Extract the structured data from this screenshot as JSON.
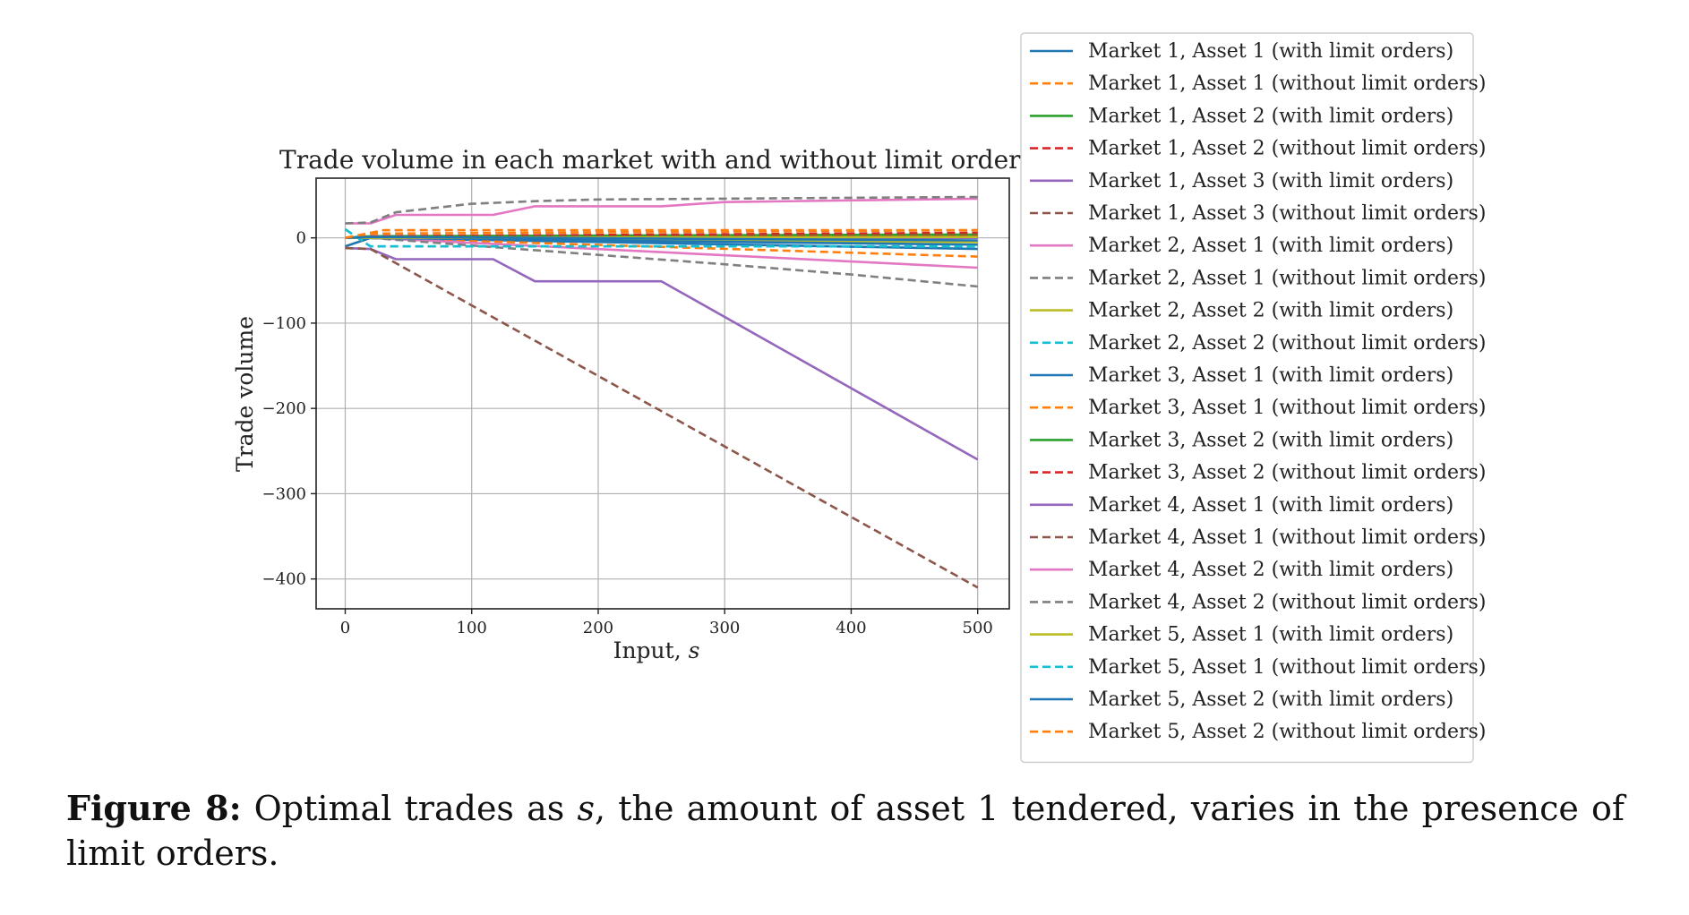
{
  "chart_data": {
    "type": "line",
    "title": "Trade volume in each market with and without limit orders",
    "xlabel_text": "Input, ",
    "xlabel_var": "s",
    "ylabel": "Trade volume",
    "xlim": [
      -23,
      525
    ],
    "ylim": [
      -435,
      70
    ],
    "xticks": [
      0,
      100,
      200,
      300,
      400,
      500
    ],
    "yticks": [
      0,
      -100,
      -200,
      -300,
      -400
    ],
    "xtick_labels": [
      "0",
      "100",
      "200",
      "300",
      "400",
      "500"
    ],
    "ytick_labels": [
      "0",
      "−100",
      "−200",
      "−300",
      "−400"
    ],
    "grid": true,
    "legend_position": "outside-right",
    "series": [
      {
        "name": "Market 1, Asset 1 (with limit orders)",
        "color": "#1f77b4",
        "dashed": false,
        "x": [
          0,
          20,
          500
        ],
        "y": [
          -10,
          0,
          -13
        ]
      },
      {
        "name": "Market 1, Asset 1 (without limit orders)",
        "color": "#ff7f0e",
        "dashed": true,
        "x": [
          0,
          20,
          500
        ],
        "y": [
          -10,
          0,
          -22
        ]
      },
      {
        "name": "Market 1, Asset 2 (with limit orders)",
        "color": "#2ca02c",
        "dashed": false,
        "x": [
          0,
          20,
          500
        ],
        "y": [
          0,
          2,
          4
        ]
      },
      {
        "name": "Market 1, Asset 2 (without limit orders)",
        "color": "#d62728",
        "dashed": true,
        "x": [
          0,
          20,
          500
        ],
        "y": [
          0,
          2,
          6
        ]
      },
      {
        "name": "Market 1, Asset 3 (with limit orders)",
        "color": "#9467bd",
        "dashed": false,
        "x": [
          0,
          20,
          500
        ],
        "y": [
          0,
          0,
          0
        ]
      },
      {
        "name": "Market 1, Asset 3 (without limit orders)",
        "color": "#8c564b",
        "dashed": true,
        "x": [
          0,
          20,
          500
        ],
        "y": [
          0,
          0,
          1
        ]
      },
      {
        "name": "Market 2, Asset 1 (with limit orders)",
        "color": "#e377c2",
        "dashed": false,
        "x": [
          0,
          20,
          500
        ],
        "y": [
          0,
          0,
          -35
        ]
      },
      {
        "name": "Market 2, Asset 1 (without limit orders)",
        "color": "#7f7f7f",
        "dashed": true,
        "x": [
          0,
          20,
          100,
          200,
          300,
          400,
          500
        ],
        "y": [
          0,
          0,
          -9,
          -20,
          -31,
          -43,
          -57
        ]
      },
      {
        "name": "Market 2, Asset 2 (with limit orders)",
        "color": "#bcbd22",
        "dashed": false,
        "x": [
          0,
          20,
          500
        ],
        "y": [
          0,
          0,
          -5
        ]
      },
      {
        "name": "Market 2, Asset 2 (without limit orders)",
        "color": "#17becf",
        "dashed": true,
        "x": [
          0,
          20,
          500
        ],
        "y": [
          10,
          -10,
          -10
        ]
      },
      {
        "name": "Market 3, Asset 1 (with limit orders)",
        "color": "#1f77b4",
        "dashed": false,
        "x": [
          0,
          20,
          500
        ],
        "y": [
          -10,
          0,
          -8
        ]
      },
      {
        "name": "Market 3, Asset 1 (without limit orders)",
        "color": "#ff7f0e",
        "dashed": true,
        "x": [
          0,
          20,
          500
        ],
        "y": [
          0,
          5,
          9
        ]
      },
      {
        "name": "Market 3, Asset 2 (with limit orders)",
        "color": "#2ca02c",
        "dashed": false,
        "x": [
          0,
          20,
          500
        ],
        "y": [
          0,
          1,
          2
        ]
      },
      {
        "name": "Market 3, Asset 2 (without limit orders)",
        "color": "#d62728",
        "dashed": true,
        "x": [
          0,
          20,
          500
        ],
        "y": [
          0,
          0,
          2
        ]
      },
      {
        "name": "Market 4, Asset 1 (with limit orders)",
        "color": "#9467bd",
        "dashed": false,
        "x": [
          0,
          20,
          40,
          117,
          150,
          250,
          500
        ],
        "y": [
          -12,
          -13,
          -25,
          -25,
          -51,
          -51,
          -260
        ]
      },
      {
        "name": "Market 4, Asset 1 (without limit orders)",
        "color": "#8c564b",
        "dashed": true,
        "x": [
          0,
          20,
          500
        ],
        "y": [
          -12,
          -13,
          -410
        ]
      },
      {
        "name": "Market 4, Asset 2 (with limit orders)",
        "color": "#e377c2",
        "dashed": false,
        "x": [
          0,
          20,
          40,
          117,
          150,
          250,
          300,
          500
        ],
        "y": [
          17,
          17,
          27,
          27,
          37,
          37,
          42,
          46
        ]
      },
      {
        "name": "Market 4, Asset 2 (without limit orders)",
        "color": "#7f7f7f",
        "dashed": true,
        "x": [
          0,
          20,
          40,
          100,
          150,
          200,
          300,
          400,
          500
        ],
        "y": [
          17,
          18,
          30,
          40,
          43,
          45,
          46,
          47,
          48
        ]
      },
      {
        "name": "Market 5, Asset 1 (with limit orders)",
        "color": "#bcbd22",
        "dashed": false,
        "x": [
          0,
          20,
          500
        ],
        "y": [
          0,
          0,
          1
        ]
      },
      {
        "name": "Market 5, Asset 1 (without limit orders)",
        "color": "#17becf",
        "dashed": true,
        "x": [
          0,
          20,
          500
        ],
        "y": [
          10,
          -10,
          -10
        ]
      },
      {
        "name": "Market 5, Asset 2 (with limit orders)",
        "color": "#1f77b4",
        "dashed": false,
        "x": [
          0,
          20,
          500
        ],
        "y": [
          0,
          1,
          -3
        ]
      },
      {
        "name": "Market 5, Asset 2 (without limit orders)",
        "color": "#ff7f0e",
        "dashed": true,
        "x": [
          0,
          30,
          500
        ],
        "y": [
          0,
          9,
          9
        ]
      }
    ]
  },
  "caption": {
    "label": "Figure 8:",
    "text_before": "Optimal trades as ",
    "variable": "s",
    "text_after": ", the amount of asset 1 tendered, varies in the presence of limit orders."
  }
}
